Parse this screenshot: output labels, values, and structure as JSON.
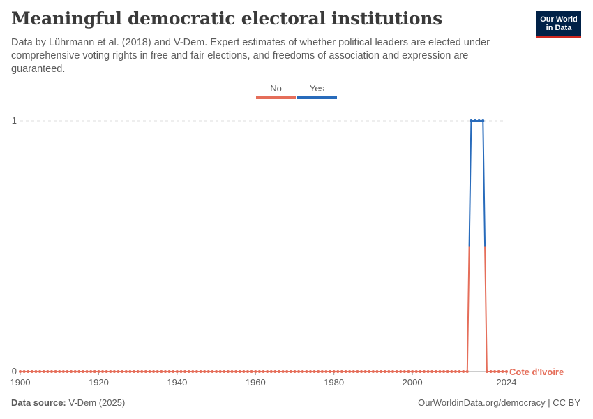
{
  "header": {
    "title": "Meaningful democratic electoral institutions",
    "subtitle": "Data by Lührmann et al. (2018) and V-Dem. Expert estimates of whether political leaders are elected under comprehensive voting rights in free and fair elections, and freedoms of association and expression are guaranteed.",
    "logo_line1": "Our World",
    "logo_line2": "in Data"
  },
  "legend": {
    "no_label": "No",
    "yes_label": "Yes",
    "no_color": "#e56e5a",
    "yes_color": "#286bbb"
  },
  "footer": {
    "source_label": "Data source:",
    "source_value": "V-Dem (2025)",
    "credit": "OurWorldinData.org/democracy | CC BY"
  },
  "chart_data": {
    "type": "line",
    "title": "Meaningful democratic electoral institutions",
    "xlabel": "",
    "ylabel": "",
    "xlim": [
      1900,
      2024
    ],
    "ylim": [
      0,
      1
    ],
    "x_ticks": [
      1900,
      1920,
      1940,
      1960,
      1980,
      2000,
      2024
    ],
    "y_ticks": [
      0,
      1
    ],
    "grid": "horizontal-dashed",
    "legend_position": "top-center",
    "categories": [
      "No",
      "Yes"
    ],
    "series": [
      {
        "name": "Cote d'Ivoire",
        "color_no": "#e56e5a",
        "color_yes": "#286bbb",
        "start_year": 1900,
        "end_year": 2024,
        "yes_years": [
          2015,
          2016,
          2017,
          2018
        ],
        "values_note_years_not_listed_are_0": ""
      }
    ],
    "end_label": "Cote d'Ivoire"
  }
}
